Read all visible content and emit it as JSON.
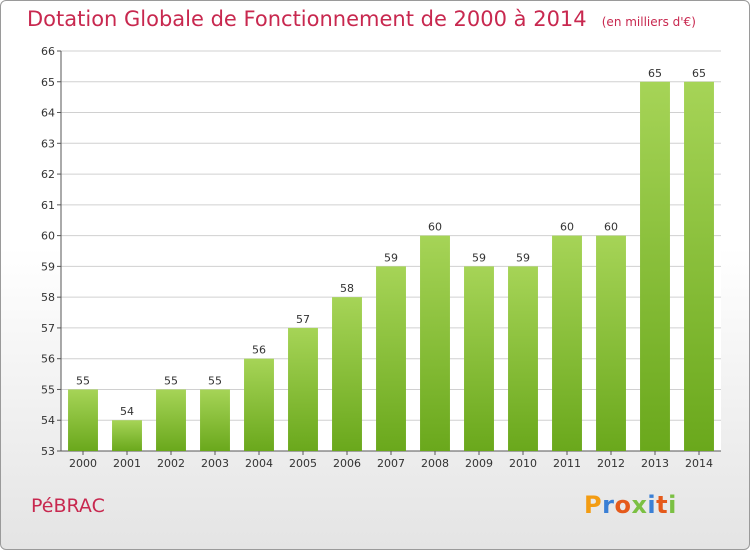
{
  "title": "Dotation Globale de Fonctionnement de 2000 à 2014",
  "unit_note": "(en milliers d'€)",
  "commune": "PéBRAC",
  "logo_text": "Proxiti",
  "colors": {
    "bar_top": "#a6d457",
    "bar_bottom": "#6aa81c",
    "title": "#c8284f"
  },
  "chart_data": {
    "type": "bar",
    "categories": [
      "2000",
      "2001",
      "2002",
      "2003",
      "2004",
      "2005",
      "2006",
      "2007",
      "2008",
      "2009",
      "2010",
      "2011",
      "2012",
      "2013",
      "2014"
    ],
    "values": [
      55,
      54,
      55,
      55,
      56,
      57,
      58,
      59,
      60,
      59,
      59,
      60,
      60,
      65,
      65
    ],
    "ylim": [
      53,
      66
    ],
    "yticks": [
      53,
      54,
      55,
      56,
      57,
      58,
      59,
      60,
      61,
      62,
      63,
      64,
      65,
      66
    ],
    "grid": true,
    "xlabel": "",
    "ylabel": ""
  }
}
